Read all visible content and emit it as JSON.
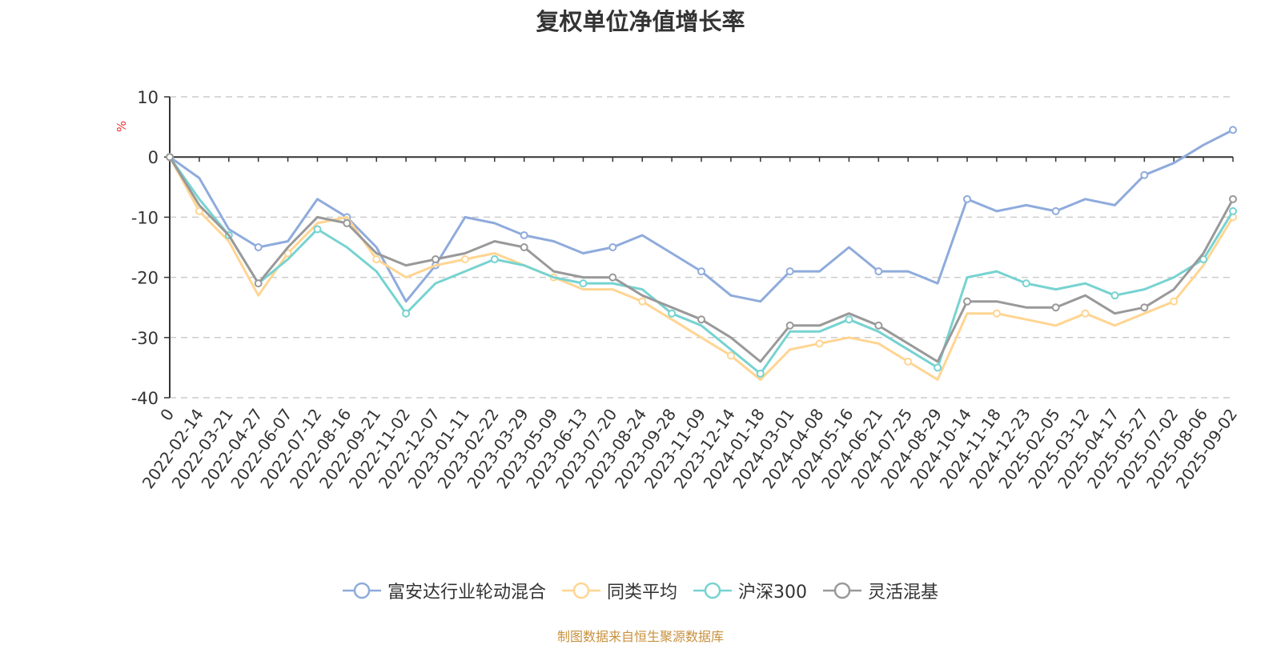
{
  "chart_data": {
    "type": "line",
    "title": "复权单位净值增长率",
    "ylabel": "%",
    "ylim": [
      -40,
      10
    ],
    "yticks": [
      10,
      0,
      -10,
      -20,
      -30,
      -40
    ],
    "grid": true,
    "legend_position": "bottom",
    "x_tick_labels": [
      "0",
      "2022-02-14",
      "2022-03-21",
      "2022-04-27",
      "2022-06-07",
      "2022-07-12",
      "2022-08-16",
      "2022-09-21",
      "2022-11-02",
      "2022-12-07",
      "2023-01-11",
      "2023-02-22",
      "2023-03-29",
      "2023-05-09",
      "2023-06-13",
      "2023-07-20",
      "2023-08-24",
      "2023-09-28",
      "2023-11-09",
      "2023-12-14",
      "2024-01-18",
      "2024-03-01",
      "2024-04-08",
      "2024-05-16",
      "2024-06-21",
      "2024-07-25",
      "2024-08-29",
      "2024-10-14",
      "2024-11-18",
      "2024-12-23",
      "2025-02-05",
      "2025-03-12",
      "2025-04-17",
      "2025-05-27",
      "2025-07-02",
      "2025-08-06",
      "2025-09-02"
    ],
    "x": [
      0,
      1,
      2,
      3,
      4,
      5,
      6,
      7,
      8,
      9,
      10,
      11,
      12,
      13,
      14,
      15,
      16,
      17,
      18,
      19,
      20,
      21,
      22,
      23,
      24,
      25,
      26,
      27,
      28,
      29,
      30,
      31,
      32,
      33,
      34,
      35,
      36
    ],
    "series": [
      {
        "name": "富安达行业轮动混合",
        "color": "#8fabdc",
        "values": [
          0,
          -3.5,
          -12,
          -15,
          -14,
          -7,
          -10,
          -15,
          -24,
          -18,
          -10,
          -11,
          -13,
          -14,
          -16,
          -15,
          -13,
          -16,
          -19,
          -23,
          -24,
          -19,
          -19,
          -15,
          -19,
          -19,
          -21,
          -7,
          -9,
          -8,
          -9,
          -7,
          -8,
          -3,
          -1,
          2,
          4.5
        ]
      },
      {
        "name": "同类平均",
        "color": "#ffd592",
        "values": [
          0,
          -9,
          -14,
          -23,
          -16,
          -11,
          -10,
          -17,
          -20,
          -18,
          -17,
          -16,
          -18,
          -20,
          -22,
          -22,
          -24,
          -27,
          -30,
          -33,
          -37,
          -32,
          -31,
          -30,
          -31,
          -34,
          -37,
          -26,
          -26,
          -27,
          -28,
          -26,
          -28,
          -26,
          -24,
          -18,
          -10
        ]
      },
      {
        "name": "沪深300",
        "color": "#77d3d1",
        "values": [
          0,
          -7,
          -13,
          -21,
          -17,
          -12,
          -15,
          -19,
          -26,
          -21,
          -19,
          -17,
          -18,
          -20,
          -21,
          -21,
          -22,
          -26,
          -28,
          -32,
          -36,
          -29,
          -29,
          -27,
          -29,
          -32,
          -35,
          -20,
          -19,
          -21,
          -22,
          -21,
          -23,
          -22,
          -20,
          -17,
          -9
        ]
      },
      {
        "name": "灵活混基",
        "color": "#999999",
        "values": [
          0,
          -8,
          -13,
          -21,
          -15,
          -10,
          -11,
          -16,
          -18,
          -17,
          -16,
          -14,
          -15,
          -19,
          -20,
          -20,
          -23,
          -25,
          -27,
          -30,
          -34,
          -28,
          -28,
          -26,
          -28,
          -31,
          -34,
          -24,
          -24,
          -25,
          -25,
          -23,
          -26,
          -25,
          -22,
          -16,
          -7
        ]
      }
    ]
  },
  "source_note": "制图数据来自恒生聚源数据库"
}
